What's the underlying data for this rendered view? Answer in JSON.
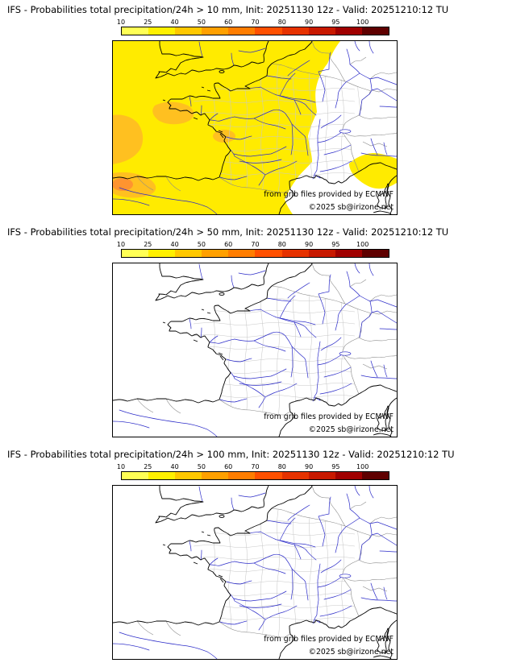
{
  "panels": [
    {
      "title": "IFS - Probabilities total precipitation/24h > 10 mm, Init: 20251130 12z - Valid: 20251210:12 TU"
    },
    {
      "title": "IFS - Probabilities total precipitation/24h > 50 mm, Init: 20251130 12z - Valid: 20251210:12 TU"
    },
    {
      "title": "IFS - Probabilities total precipitation/24h > 100 mm, Init: 20251130 12z - Valid: 20251210:12 TU"
    }
  ],
  "scale": {
    "labels": [
      "10",
      "25",
      "40",
      "50",
      "60",
      "70",
      "80",
      "90",
      "95",
      "100"
    ],
    "colors": [
      "#ffff55",
      "#fff000",
      "#ffc800",
      "#ffa000",
      "#ff7d00",
      "#ff5000",
      "#e63200",
      "#c81900",
      "#a00000",
      "#5f0000"
    ]
  },
  "attribution": {
    "line1": "from grib files provided by ECMWF",
    "line2": "©2025 sb@irizone.net"
  },
  "colors": {
    "level1": "#ffeb00",
    "level2": "#ffc020",
    "level3": "#ff9430",
    "coast": "#000000",
    "river": "#2a2ac8",
    "admin": "#c8c8c8",
    "country": "#8a8a8a",
    "lake": "#ffffff"
  }
}
